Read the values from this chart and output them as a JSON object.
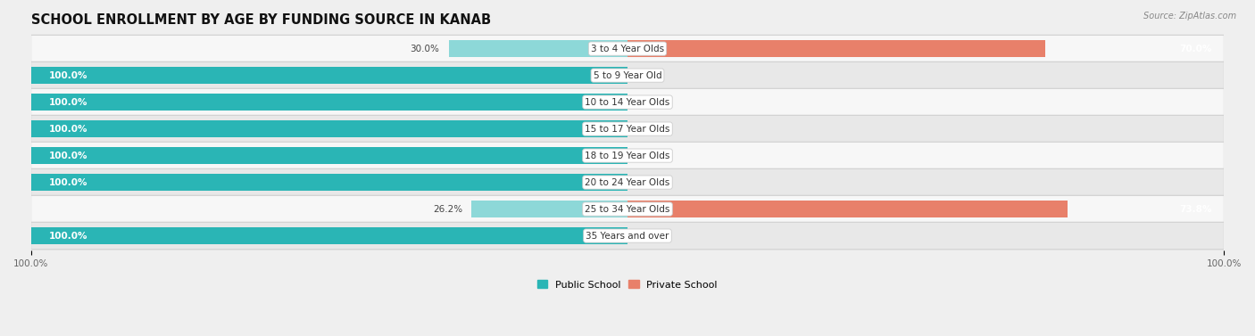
{
  "title": "SCHOOL ENROLLMENT BY AGE BY FUNDING SOURCE IN KANAB",
  "source": "Source: ZipAtlas.com",
  "categories": [
    "3 to 4 Year Olds",
    "5 to 9 Year Old",
    "10 to 14 Year Olds",
    "15 to 17 Year Olds",
    "18 to 19 Year Olds",
    "20 to 24 Year Olds",
    "25 to 34 Year Olds",
    "35 Years and over"
  ],
  "public_values": [
    30.0,
    100.0,
    100.0,
    100.0,
    100.0,
    100.0,
    26.2,
    100.0
  ],
  "private_values": [
    70.0,
    0.0,
    0.0,
    0.0,
    0.0,
    0.0,
    73.8,
    0.0
  ],
  "public_color_dark": "#2ab5b5",
  "public_color_light": "#8dd8d8",
  "private_color_dark": "#e8806a",
  "private_color_light": "#f0b4a8",
  "bg_color": "#efefef",
  "row_color_light": "#f7f7f7",
  "row_color_dark": "#e8e8e8",
  "title_fontsize": 10.5,
  "label_fontsize": 7.5,
  "axis_label_fontsize": 7.5,
  "bar_height": 0.62,
  "xlim_left": -100,
  "xlim_right": 100
}
